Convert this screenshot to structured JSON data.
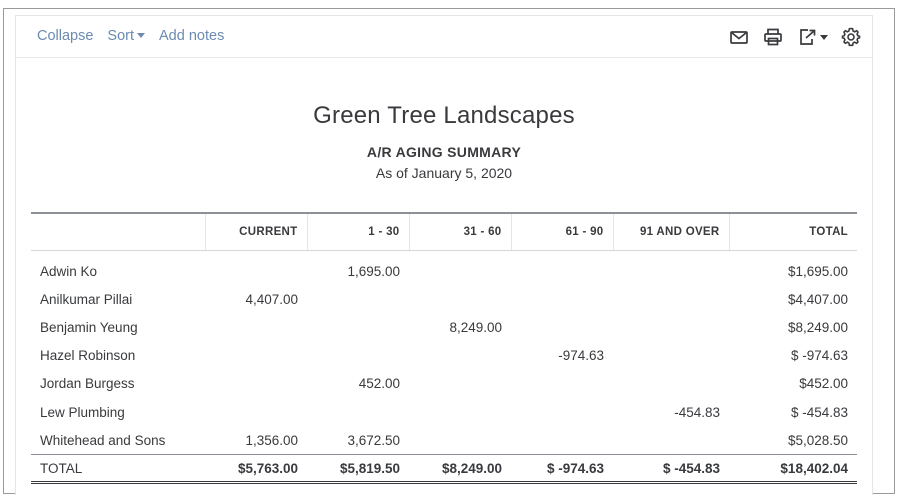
{
  "toolbar": {
    "collapse_label": "Collapse",
    "sort_label": "Sort",
    "add_notes_label": "Add notes",
    "icons": [
      "email-icon",
      "print-icon",
      "export-icon",
      "gear-icon"
    ]
  },
  "report": {
    "company": "Green Tree Landscapes",
    "title": "A/R AGING SUMMARY",
    "date": "As of January 5, 2020",
    "columns": [
      "",
      "CURRENT",
      "1 - 30",
      "31 - 60",
      "61 - 90",
      "91 AND OVER",
      "TOTAL"
    ],
    "rows": [
      [
        "Adwin Ko",
        "",
        "1,695.00",
        "",
        "",
        "",
        "$1,695.00"
      ],
      [
        "Anilkumar Pillai",
        "4,407.00",
        "",
        "",
        "",
        "",
        "$4,407.00"
      ],
      [
        "Benjamin Yeung",
        "",
        "",
        "8,249.00",
        "",
        "",
        "$8,249.00"
      ],
      [
        "Hazel Robinson",
        "",
        "",
        "",
        "-974.63",
        "",
        "$ -974.63"
      ],
      [
        "Jordan Burgess",
        "",
        "452.00",
        "",
        "",
        "",
        "$452.00"
      ],
      [
        "Lew Plumbing",
        "",
        "",
        "",
        "",
        "-454.83",
        "$ -454.83"
      ],
      [
        "Whitehead and Sons",
        "1,356.00",
        "3,672.50",
        "",
        "",
        "",
        "$5,028.50"
      ]
    ],
    "total": [
      "TOTAL",
      "$5,763.00",
      "$5,819.50",
      "$8,249.00",
      "$ -974.63",
      "$ -454.83",
      "$18,402.04"
    ]
  }
}
